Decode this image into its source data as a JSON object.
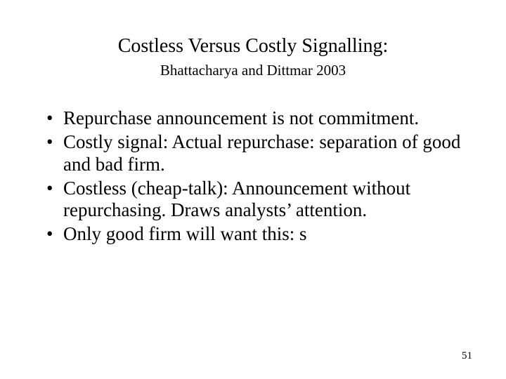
{
  "title": "Costless Versus Costly Signalling:",
  "subtitle": "Bhattacharya and Dittmar 2003",
  "bullets": [
    "Repurchase announcement is not commitment.",
    "Costly signal: Actual repurchase: separation of good and bad firm.",
    "Costless (cheap-talk): Announcement without repurchasing. Draws analysts’ attention.",
    "Only good firm will want this: s"
  ],
  "page_number": "51",
  "colors": {
    "background": "#ffffff",
    "text": "#000000"
  },
  "fonts": {
    "family": "Times New Roman",
    "title_size": 28,
    "subtitle_size": 21,
    "body_size": 27,
    "page_number_size": 15
  }
}
